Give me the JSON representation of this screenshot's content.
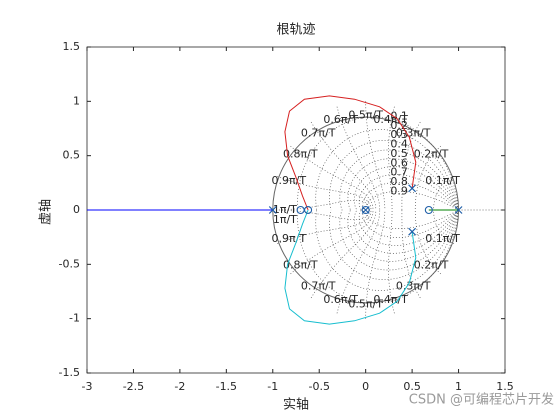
{
  "chart_data": {
    "type": "root_locus",
    "title": "根轨迹",
    "x_label": "实轴",
    "y_label": "虚轴",
    "xlim": [
      -3,
      1.5
    ],
    "ylim": [
      -1.5,
      1.5
    ],
    "xticks": [
      -3,
      -2.5,
      -2,
      -1.5,
      -1,
      -0.5,
      0,
      0.5,
      1,
      1.5
    ],
    "yticks": [
      -1.5,
      -1,
      -0.5,
      0,
      0.5,
      1,
      1.5
    ],
    "series": [
      {
        "color": "#0000ff",
        "x": [
          -1,
          -3
        ],
        "y": [
          0,
          0
        ]
      },
      {
        "color": "#008000",
        "x": [
          0.68,
          1
        ],
        "y": [
          0,
          0
        ]
      },
      {
        "color": "#d62020",
        "x": [
          0.5,
          0.54,
          0.47,
          0.34,
          0.15,
          -0.12,
          -0.39,
          -0.66,
          -0.82,
          -0.87,
          -0.84,
          -0.75,
          -0.68,
          -0.62
        ],
        "y": [
          0.2,
          0.44,
          0.67,
          0.84,
          0.95,
          1.02,
          1.05,
          1.02,
          0.91,
          0.72,
          0.5,
          0.3,
          0.13,
          0
        ]
      },
      {
        "color": "#17becf",
        "x": [
          0.5,
          0.54,
          0.47,
          0.34,
          0.15,
          -0.12,
          -0.39,
          -0.66,
          -0.82,
          -0.87,
          -0.84,
          -0.75,
          -0.68,
          -0.62
        ],
        "y": [
          -0.2,
          -0.44,
          -0.67,
          -0.84,
          -0.95,
          -1.02,
          -1.05,
          -1.02,
          -0.91,
          -0.72,
          -0.5,
          -0.3,
          -0.13,
          0
        ]
      }
    ],
    "poles": {
      "x": [
        -1,
        0,
        1,
        0.5,
        0.5
      ],
      "y": [
        0,
        0,
        0,
        0.2,
        -0.2
      ]
    },
    "zeros": {
      "x": [
        -0.7,
        -0.62,
        0,
        0.68
      ],
      "y": [
        0,
        0,
        0,
        0
      ]
    },
    "damping_lines": [
      0.1,
      0.2,
      0.3,
      0.4,
      0.5,
      0.6,
      0.7,
      0.8,
      0.9
    ],
    "frequency_lines": [
      {
        "value": 0.1,
        "label": "0.1π/T"
      },
      {
        "value": 0.2,
        "label": "0.2π/T"
      },
      {
        "value": 0.3,
        "label": "0.3π/T"
      },
      {
        "value": 0.4,
        "label": "0.4π/T"
      },
      {
        "value": 0.5,
        "label": "0.5π/T"
      },
      {
        "value": 0.6,
        "label": "0.6π/T"
      },
      {
        "value": 0.7,
        "label": "0.7π/T"
      },
      {
        "value": 0.8,
        "label": "0.8π/T"
      },
      {
        "value": 0.9,
        "label": "0.9π/T"
      },
      {
        "value": 1,
        "label": "1π/T"
      }
    ]
  },
  "watermark": "CSDN @可编程芯片开发"
}
